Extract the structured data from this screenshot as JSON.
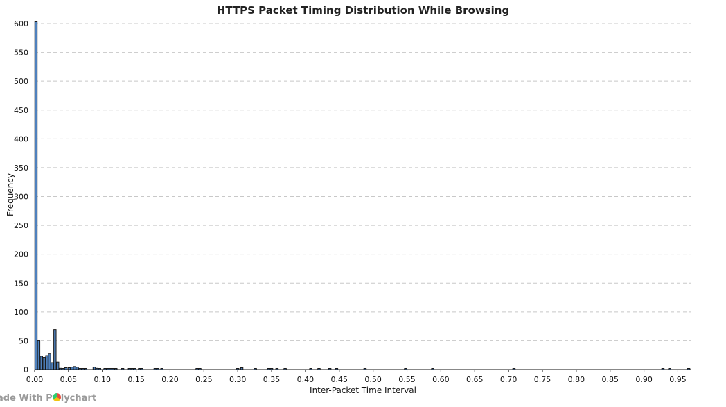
{
  "chart_data": {
    "type": "bar",
    "title": "HTTPS Packet Timing Distribution While Browsing",
    "xlabel": "Inter-Packet Time Interval",
    "ylabel": "Frequency",
    "xlim": [
      0,
      0.97
    ],
    "ylim": [
      0,
      600
    ],
    "xticks": [
      "0.00",
      "0.05",
      "0.10",
      "0.15",
      "0.20",
      "0.25",
      "0.30",
      "0.35",
      "0.40",
      "0.45",
      "0.50",
      "0.55",
      "0.60",
      "0.65",
      "0.70",
      "0.75",
      "0.80",
      "0.85",
      "0.90",
      "0.95"
    ],
    "yticks": [
      "0",
      "50",
      "100",
      "150",
      "200",
      "250",
      "300",
      "350",
      "400",
      "450",
      "500",
      "550",
      "600"
    ],
    "grid": true,
    "bar_width": 0.0035,
    "x": [
      0.002,
      0.006,
      0.01,
      0.014,
      0.018,
      0.022,
      0.026,
      0.03,
      0.034,
      0.038,
      0.042,
      0.046,
      0.051,
      0.055,
      0.059,
      0.063,
      0.067,
      0.071,
      0.075,
      0.088,
      0.092,
      0.096,
      0.104,
      0.108,
      0.112,
      0.116,
      0.12,
      0.13,
      0.14,
      0.144,
      0.148,
      0.155,
      0.158,
      0.178,
      0.182,
      0.188,
      0.24,
      0.244,
      0.3,
      0.306,
      0.326,
      0.346,
      0.35,
      0.358,
      0.37,
      0.408,
      0.42,
      0.436,
      0.446,
      0.488,
      0.548,
      0.588,
      0.708,
      0.928,
      0.938,
      0.966
    ],
    "values": [
      603,
      50,
      23,
      21,
      24,
      28,
      12,
      69,
      13,
      2,
      1,
      3,
      3,
      4,
      5,
      4,
      1,
      0.5,
      0.5,
      4,
      2,
      1,
      0.5,
      1,
      1,
      0.5,
      0.5,
      0.5,
      0.5,
      0.5,
      0.5,
      0.5,
      1,
      0.5,
      0.5,
      0.5,
      0.5,
      0.5,
      0.5,
      3,
      0.5,
      0.5,
      0.5,
      0.5,
      0.5,
      0.5,
      0.5,
      0.5,
      0.5,
      0.5,
      0.5,
      0.5,
      0.5,
      0.5,
      0.5,
      1
    ]
  },
  "watermark": {
    "text_before": "ade With P",
    "text_after": "lychart"
  }
}
